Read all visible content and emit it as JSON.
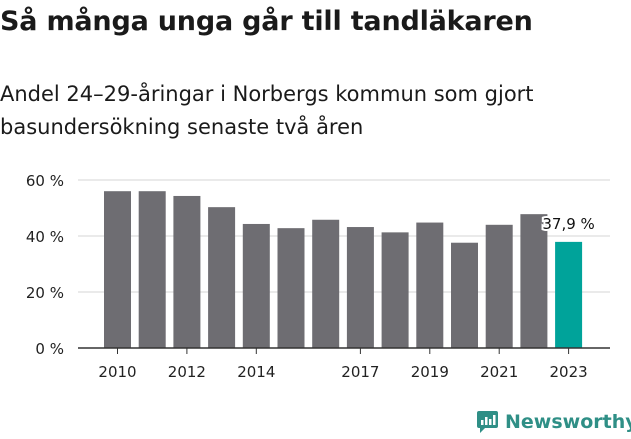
{
  "title": "Så många unga går till tandläkaren",
  "subtitle_lines": [
    "Andel 24–29-åringar i Norbergs kommun som gjort",
    "basundersökning senaste två åren"
  ],
  "brand": {
    "name": "Newsworthy",
    "icon": "chart-bubble-icon",
    "color": "#2f8f86"
  },
  "chart_data": {
    "type": "bar",
    "categories": [
      "2010",
      "2011",
      "2012",
      "2013",
      "2014",
      "2015",
      "2016",
      "2017",
      "2018",
      "2019",
      "2020",
      "2021",
      "2022",
      "2023"
    ],
    "values": [
      56,
      56,
      54.3,
      50.3,
      44.3,
      42.8,
      45.8,
      43.2,
      41.3,
      44.8,
      37.6,
      44,
      47.8,
      37.9
    ],
    "tick_labels": [
      "2010",
      "",
      "2012",
      "",
      "2014",
      "",
      "",
      "2017",
      "",
      "2019",
      "",
      "2021",
      "",
      "2023"
    ],
    "y_ticks": [
      0,
      20,
      40,
      60
    ],
    "y_tick_labels": [
      "0 %",
      "20 %",
      "40 %",
      "60 %"
    ],
    "ylim": [
      0,
      60
    ],
    "annotation": {
      "category": "2023",
      "text": "37,9 %"
    },
    "highlight_category": "2023",
    "colors": {
      "bar": "#6e6d72",
      "highlight": "#00a39a",
      "grid": "#d4d4d4",
      "axis": "#333333"
    },
    "grid": true
  }
}
